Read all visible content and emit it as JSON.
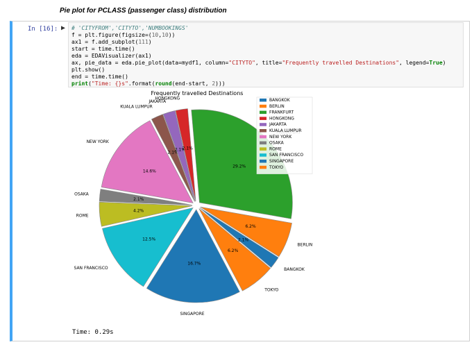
{
  "heading": "Pie plot for PCLASS (passenger class) distribution",
  "cell": {
    "prompt": "In [16]:",
    "code_lines": [
      "# 'CITYFROM','CITYTO','NUMBOOKINGS'",
      "f = plt.figure(figsize=(10,10))",
      "ax1 = f.add_subplot(111)",
      "start = time.time()",
      "eda = EDAVisualizer(ax1)",
      "ax, pie_data = eda.pie_plot(data=mydf1, column=\"CITYTO\", title=\"Frequently travelled Destinations\", legend=True)",
      "plt.show()",
      "end = time.time()",
      "print(\"Time: {}s\".format(round(end-start, 2)))"
    ],
    "output_text": "Time: 0.29s"
  },
  "chart_data": {
    "type": "pie",
    "title": "Frequently travelled Destinations",
    "categories": [
      "FRANKFURT",
      "BERLIN",
      "BANGKOK",
      "TOKYO",
      "SINGAPORE",
      "SAN FRANCISCO",
      "ROME",
      "OSAKA",
      "NEW YORK",
      "KUALA LUMPUR",
      "JAKARTA",
      "HONGKONG"
    ],
    "values": [
      29.2,
      6.2,
      2.1,
      6.2,
      16.7,
      12.5,
      4.2,
      2.1,
      14.6,
      2.1,
      2.1,
      2.1
    ],
    "labels": [
      "29.2%",
      "6.2%",
      "2.1%",
      "6.2%",
      "16.7%",
      "12.5%",
      "4.2%",
      "2.1%",
      "14.6%",
      "2.1%",
      "2.1%",
      "2.1%"
    ],
    "colors": [
      "#2ca02c",
      "#ff7f0e",
      "#1f77b4",
      "#ff7f0e",
      "#1f77b4",
      "#17becf",
      "#bcbd22",
      "#7f7f7f",
      "#e377c2",
      "#8c564b",
      "#9467bd",
      "#d62728"
    ],
    "legend": {
      "placement": "top-right",
      "entries": [
        {
          "name": "BANGKOK",
          "color": "#1f77b4"
        },
        {
          "name": "BERLIN",
          "color": "#ff7f0e"
        },
        {
          "name": "FRANKFURT",
          "color": "#2ca02c"
        },
        {
          "name": "HONGKONG",
          "color": "#d62728"
        },
        {
          "name": "JAKARTA",
          "color": "#9467bd"
        },
        {
          "name": "KUALA LUMPUR",
          "color": "#8c564b"
        },
        {
          "name": "NEW YORK",
          "color": "#e377c2"
        },
        {
          "name": "OSAKA",
          "color": "#7f7f7f"
        },
        {
          "name": "ROME",
          "color": "#bcbd22"
        },
        {
          "name": "SAN FRANCISCO",
          "color": "#17becf"
        },
        {
          "name": "SINGAPORE",
          "color": "#1f77b4"
        },
        {
          "name": "TOKYO",
          "color": "#ff7f0e"
        }
      ]
    }
  }
}
